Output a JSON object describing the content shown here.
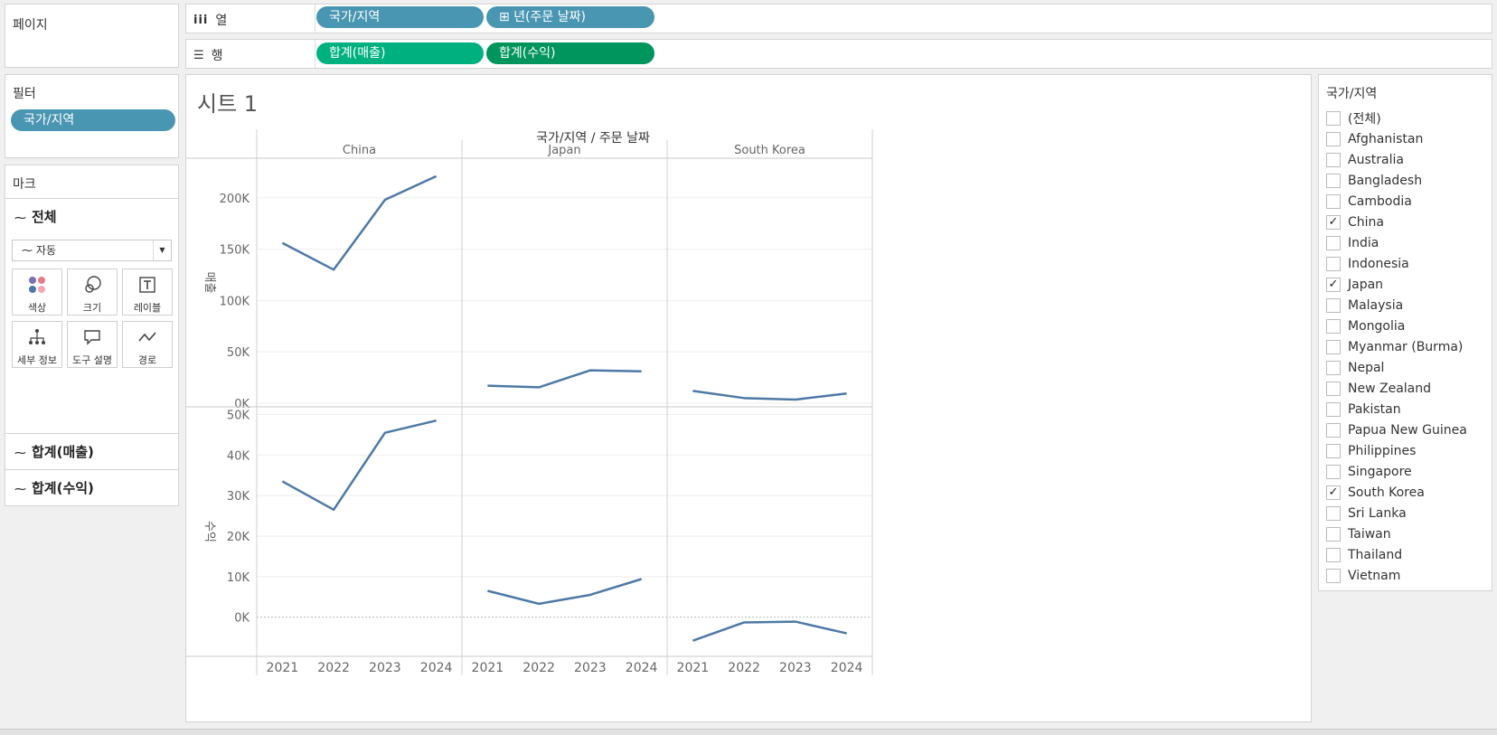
{
  "shelves": {
    "pages_label": "페이지",
    "columns_label": "열",
    "rows_label": "행",
    "column_pills": [
      "국가/지역",
      "⊞ 년(주문 날짜)"
    ],
    "row_pills": [
      "합계(매출)",
      "합계(수익)"
    ]
  },
  "filters": {
    "title": "필터",
    "pill": "국가/지역"
  },
  "marks": {
    "title": "마크",
    "all_label": "전체",
    "mark_type": "자동",
    "buttons": {
      "color": "색상",
      "size": "크기",
      "label": "레이블",
      "detail": "세부 정보",
      "tooltip": "도구 설명",
      "path": "경로"
    },
    "measure_cards": [
      "합계(매출)",
      "합계(수익)"
    ]
  },
  "sheet": {
    "title": "시트 1",
    "header_title": "국가/지역 / 주문 날짜"
  },
  "legend": {
    "title": "국가/지역",
    "items": [
      {
        "label": "(전체)",
        "checked": false
      },
      {
        "label": "Afghanistan",
        "checked": false
      },
      {
        "label": "Australia",
        "checked": false
      },
      {
        "label": "Bangladesh",
        "checked": false
      },
      {
        "label": "Cambodia",
        "checked": false
      },
      {
        "label": "China",
        "checked": true
      },
      {
        "label": "India",
        "checked": false
      },
      {
        "label": "Indonesia",
        "checked": false
      },
      {
        "label": "Japan",
        "checked": true
      },
      {
        "label": "Malaysia",
        "checked": false
      },
      {
        "label": "Mongolia",
        "checked": false
      },
      {
        "label": "Myanmar (Burma)",
        "checked": false
      },
      {
        "label": "Nepal",
        "checked": false
      },
      {
        "label": "New Zealand",
        "checked": false
      },
      {
        "label": "Pakistan",
        "checked": false
      },
      {
        "label": "Papua New Guinea",
        "checked": false
      },
      {
        "label": "Philippines",
        "checked": false
      },
      {
        "label": "Singapore",
        "checked": false
      },
      {
        "label": "South Korea",
        "checked": true
      },
      {
        "label": "Sri Lanka",
        "checked": false
      },
      {
        "label": "Taiwan",
        "checked": false
      },
      {
        "label": "Thailand",
        "checked": false
      },
      {
        "label": "Vietnam",
        "checked": false
      }
    ]
  },
  "chart_data": {
    "type": "line",
    "panes": [
      "China",
      "Japan",
      "South Korea"
    ],
    "x": [
      "2021",
      "2022",
      "2023",
      "2024"
    ],
    "line_color": "#4e79a7",
    "rows": [
      {
        "ylabel": "매출",
        "ylim": [
          0,
          235000
        ],
        "ticks": [
          0,
          50000,
          100000,
          150000,
          200000
        ],
        "tick_labels": [
          "0K",
          "50K",
          "100K",
          "150K",
          "200K"
        ],
        "series": [
          {
            "name": "China",
            "values": [
              156000,
              130000,
              198000,
              221000
            ]
          },
          {
            "name": "Japan",
            "values": [
              17000,
              15500,
              32000,
              31000
            ]
          },
          {
            "name": "South Korea",
            "values": [
              12000,
              5000,
              3500,
              9500
            ]
          }
        ]
      },
      {
        "ylabel": "수익",
        "ylim": [
          -9000,
          51000
        ],
        "ticks": [
          0,
          10000,
          20000,
          30000,
          40000,
          50000
        ],
        "tick_labels": [
          "0K",
          "10K",
          "20K",
          "30K",
          "40K",
          "50K"
        ],
        "series": [
          {
            "name": "China",
            "values": [
              33500,
              26500,
              45500,
              48500
            ]
          },
          {
            "name": "Japan",
            "values": [
              6500,
              3300,
              5500,
              9400
            ]
          },
          {
            "name": "South Korea",
            "values": [
              -5800,
              -1300,
              -1100,
              -4000
            ]
          }
        ]
      }
    ]
  }
}
